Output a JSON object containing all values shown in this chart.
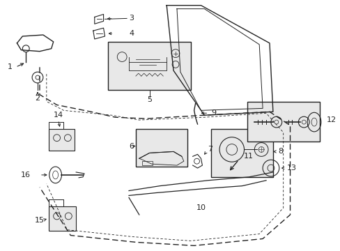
{
  "bg_color": "#ffffff",
  "line_color": "#222222",
  "box_fill": "#e8e8e8",
  "box_edge": "#222222",
  "label_color": "#111111"
}
